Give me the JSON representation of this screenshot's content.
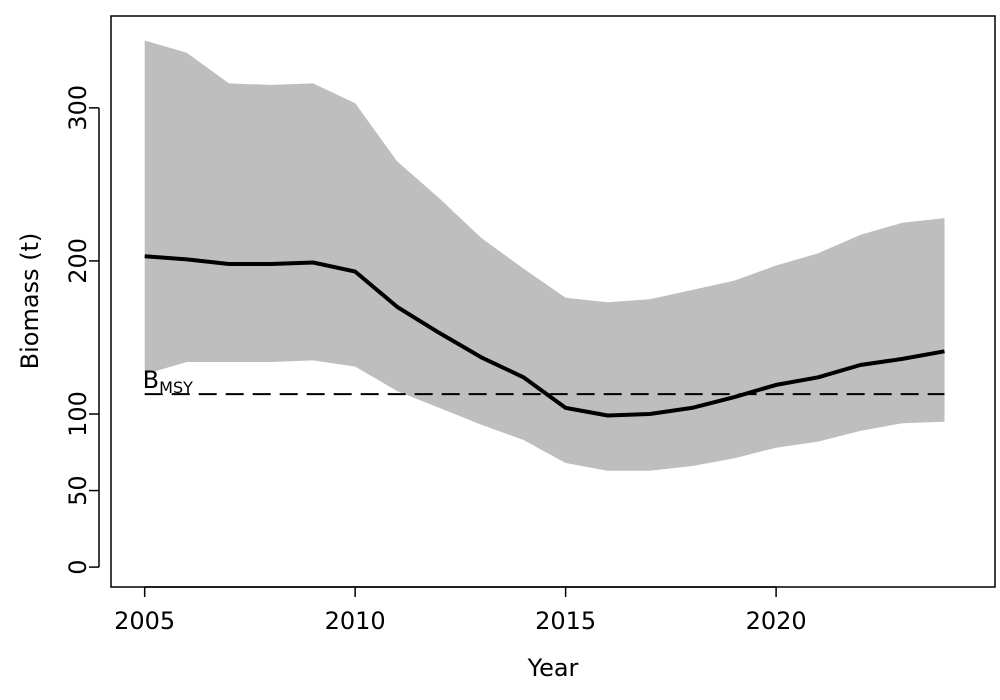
{
  "chart_data": {
    "type": "line",
    "title": "",
    "xlabel": "Year",
    "ylabel": "Biomass (t)",
    "xlim": [
      2004.2,
      2025.2
    ],
    "ylim": [
      -13,
      360
    ],
    "xticks": [
      2005,
      2010,
      2015,
      2020
    ],
    "yticks": [
      0,
      50,
      100,
      200,
      300
    ],
    "x": [
      2005,
      2006,
      2007,
      2008,
      2009,
      2010,
      2011,
      2012,
      2013,
      2014,
      2015,
      2016,
      2017,
      2018,
      2019,
      2020,
      2021,
      2022,
      2023,
      2024
    ],
    "series": [
      {
        "type": "line",
        "color": "#000000",
        "values": [
          203,
          201,
          198,
          198,
          199,
          193,
          170,
          153,
          137,
          124,
          104,
          99,
          100,
          104,
          111,
          119,
          124,
          132,
          136,
          141
        ]
      },
      {
        "type": "band",
        "color": "#bebebe",
        "upper": [
          344,
          336,
          316,
          315,
          316,
          303,
          265,
          241,
          215,
          195,
          176,
          173,
          175,
          181,
          187,
          197,
          205,
          217,
          225,
          228
        ],
        "lower": [
          126,
          134,
          134,
          134,
          135,
          131,
          115,
          104,
          93,
          83,
          68,
          63,
          63,
          66,
          71,
          78,
          82,
          89,
          94,
          95
        ]
      }
    ],
    "reference_line": {
      "y": 113,
      "style": "dashed",
      "label_main": "B",
      "label_sub": "MSY"
    },
    "grid": false,
    "legend": "none"
  }
}
